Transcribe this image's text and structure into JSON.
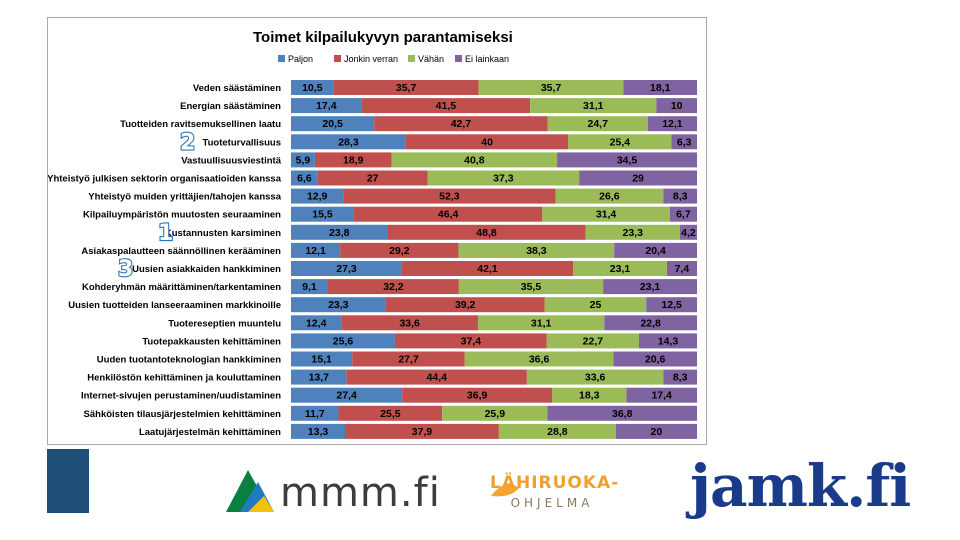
{
  "chart_data": {
    "type": "stacked-bar-horizontal",
    "title": "Toimet kilpailukyvyn parantamiseksi",
    "series_names": [
      "Paljon",
      "Jonkin verran",
      "Vähän",
      "Ei lainkaan"
    ],
    "series_colors": [
      "#4f81bd",
      "#c0504d",
      "#9bbb59",
      "#8064a2"
    ],
    "legend_position": "top",
    "xlim": [
      0,
      100
    ],
    "grid": false,
    "categories": [
      "Veden säästäminen",
      "Energian säästäminen",
      "Tuotteiden ravitsemuksellinen laatu",
      "Tuoteturvallisuus",
      "Vastuullisuusviestintä",
      "Yhteistyö julkisen sektorin organisaatioiden kanssa",
      "Yhteistyö muiden yrittäjien/tahojen kanssa",
      "Kilpailuympäristön muutosten seuraaminen",
      "Kustannusten karsiminen",
      "Asiakaspalautteen säännöllinen kerääminen",
      "Uusien asiakkaiden hankkiminen",
      "Kohderyhmän määrittäminen/tarkentaminen",
      "Uusien tuotteiden lanseeraaminen markkinoille",
      "Tuotereseptien muuntelu",
      "Tuotepakkausten kehittäminen",
      "Uuden tuotantoteknologian hankkiminen",
      "Henkilöstön kehittäminen ja kouluttaminen",
      "Internet-sivujen perustaminen/uudistaminen",
      "Sähköisten tilausjärjestelmien kehittäminen",
      "Laatujärjestelmän kehittäminen"
    ],
    "values": [
      [
        10.5,
        35.7,
        35.7,
        18.1
      ],
      [
        17.4,
        41.5,
        31.1,
        10
      ],
      [
        20.5,
        42.7,
        24.7,
        12.1
      ],
      [
        28.3,
        40,
        25.4,
        6.3
      ],
      [
        5.9,
        18.9,
        40.8,
        34.5
      ],
      [
        6.6,
        27,
        37.3,
        29
      ],
      [
        12.9,
        52.3,
        26.6,
        8.3
      ],
      [
        15.5,
        46.4,
        31.4,
        6.7
      ],
      [
        23.8,
        48.8,
        23.3,
        4.2
      ],
      [
        12.1,
        29.2,
        38.3,
        20.4
      ],
      [
        27.3,
        42.1,
        23.1,
        7.4
      ],
      [
        9.1,
        32.2,
        35.5,
        23.1
      ],
      [
        23.3,
        39.2,
        25,
        12.5
      ],
      [
        12.4,
        33.6,
        31.1,
        22.8
      ],
      [
        25.6,
        37.4,
        22.7,
        14.3
      ],
      [
        15.1,
        27.7,
        36.6,
        20.6
      ],
      [
        13.7,
        44.4,
        33.6,
        8.3
      ],
      [
        27.4,
        36.9,
        18.3,
        17.4
      ],
      [
        11.7,
        25.5,
        25.9,
        36.8
      ],
      [
        13.3,
        37.9,
        28.8,
        20
      ]
    ],
    "labels": [
      [
        "10,5",
        "35,7",
        "35,7",
        "18,1"
      ],
      [
        "17,4",
        "41,5",
        "31,1",
        "10"
      ],
      [
        "20,5",
        "42,7",
        "24,7",
        "12,1"
      ],
      [
        "28,3",
        "40",
        "25,4",
        "6,3"
      ],
      [
        "5,9",
        "18,9",
        "40,8",
        "34,5"
      ],
      [
        "6,6",
        "27",
        "37,3",
        "29"
      ],
      [
        "12,9",
        "52,3",
        "26,6",
        "8,3"
      ],
      [
        "15,5",
        "46,4",
        "31,4",
        "6,7"
      ],
      [
        "23,8",
        "48,8",
        "23,3",
        "4,2"
      ],
      [
        "12,1",
        "29,2",
        "38,3",
        "20,4"
      ],
      [
        "27,3",
        "42,1",
        "23,1",
        "7,4"
      ],
      [
        "9,1",
        "32,2",
        "35,5",
        "23,1"
      ],
      [
        "23,3",
        "39,2",
        "25",
        "12,5"
      ],
      [
        "12,4",
        "33,6",
        "31,1",
        "22,8"
      ],
      [
        "25,6",
        "37,4",
        "22,7",
        "14,3"
      ],
      [
        "15,1",
        "27,7",
        "36,6",
        "20,6"
      ],
      [
        "13,7",
        "44,4",
        "33,6",
        "8,3"
      ],
      [
        "27,4",
        "36,9",
        "18,3",
        "17,4"
      ],
      [
        "11,7",
        "25,5",
        "25,9",
        "36,8"
      ],
      [
        "13,3",
        "37,9",
        "28,8",
        "20"
      ]
    ],
    "rank_annotations": [
      {
        "category": "Tuoteturvallisuus",
        "rank": "2"
      },
      {
        "category": "Kustannusten karsiminen",
        "rank": "1"
      },
      {
        "category": "Uusien asiakkaiden hankkiminen",
        "rank": "3"
      }
    ],
    "annotation_color": "#2e75b6"
  },
  "logos": {
    "mmm": "mmm.fi",
    "lahiruoka_top": "LÄHIRUOKA-",
    "lahiruoka_bottom": "OHJELMA",
    "jamk": "jamk.fi"
  }
}
